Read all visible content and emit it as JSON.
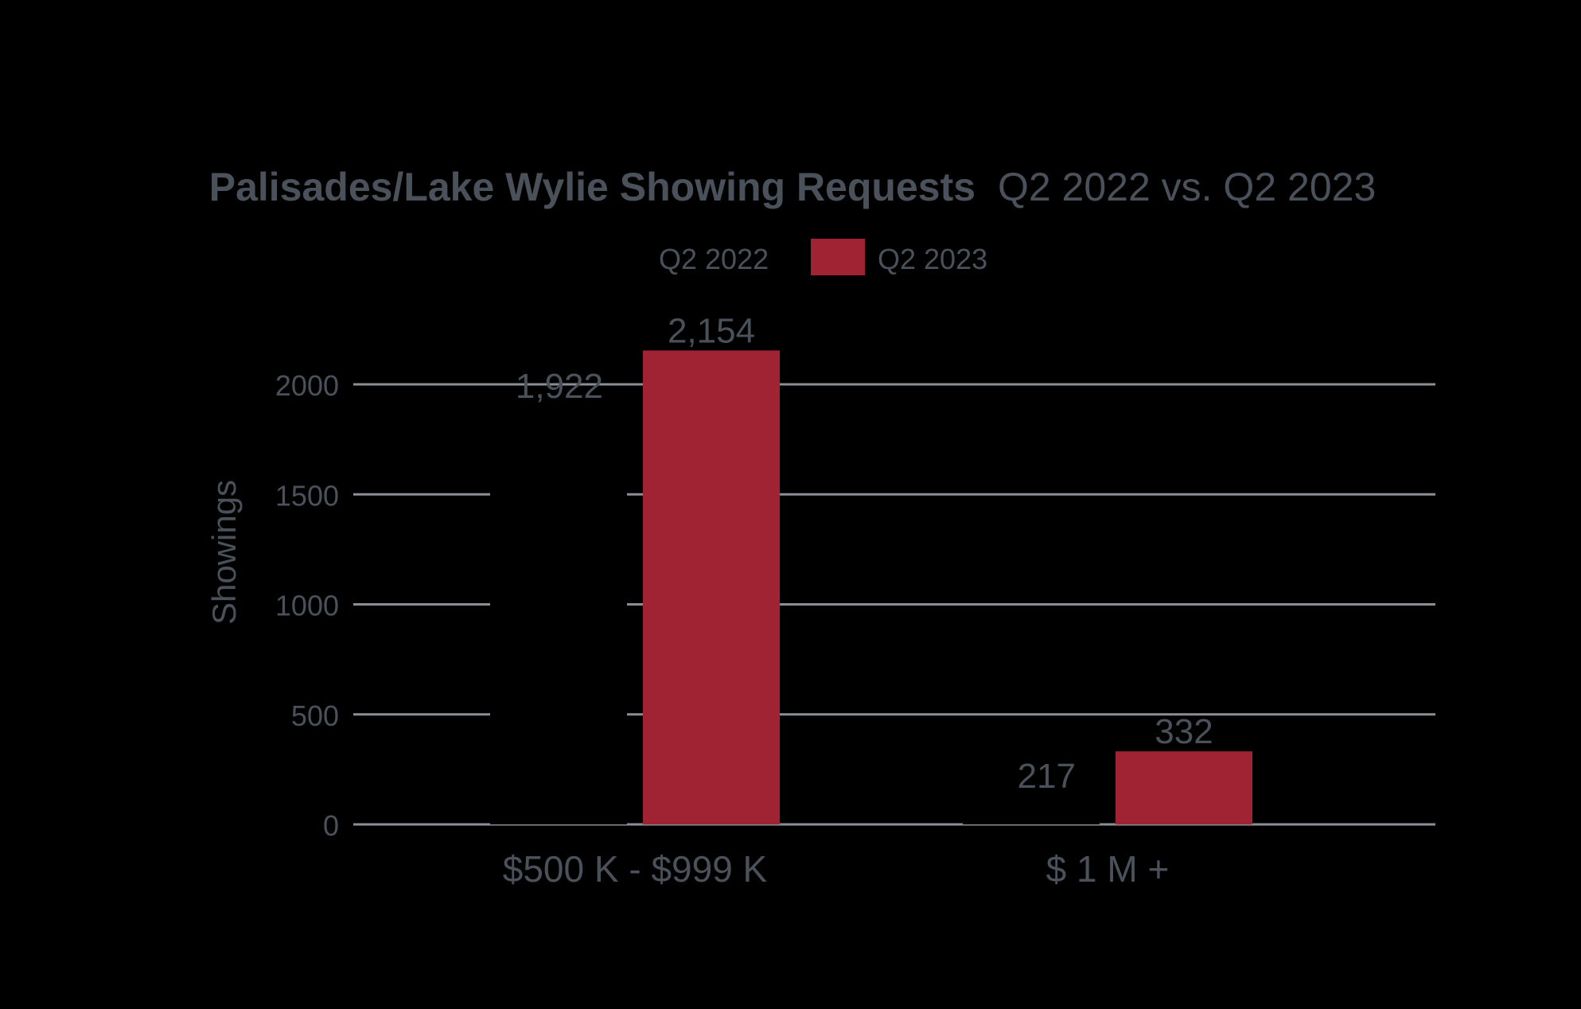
{
  "colors": {
    "background": "#000000",
    "text": "#4a515a",
    "grid": "#8a8f95",
    "series_2023": "#a02334",
    "series_2022": "#000000"
  },
  "chart_data": {
    "type": "bar",
    "title_bold": "Palisades/Lake Wylie Showing Requests",
    "title_rest": "Q2 2022 vs. Q2 2023",
    "ylabel": "Showings",
    "xlabel": "",
    "categories": [
      "$500 K - $999 K",
      "$ 1 M +"
    ],
    "series": [
      {
        "name": "Q2 2022",
        "values": [
          1922,
          217
        ],
        "labels": [
          "1,922",
          "217"
        ]
      },
      {
        "name": "Q2 2023",
        "values": [
          2154,
          332
        ],
        "labels": [
          "2,154",
          "332"
        ]
      }
    ],
    "ylim": [
      0,
      2000
    ],
    "yticks": [
      0,
      500,
      1000,
      1500,
      2000
    ],
    "grid": true,
    "legend": "top-center"
  }
}
